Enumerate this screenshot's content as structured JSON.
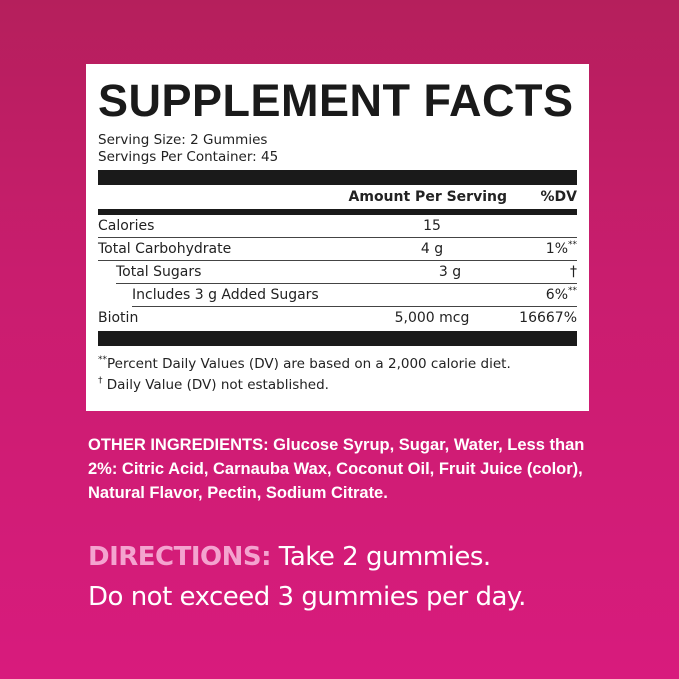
{
  "label": {
    "title": "SUPPLEMENT FACTS",
    "serving_size": "Serving Size: 2 Gummies",
    "servings_per_container": "Servings Per Container: 45",
    "header": {
      "amount": "Amount Per Serving",
      "dv": "%DV"
    },
    "rows": [
      {
        "name": "Calories",
        "amount": "15",
        "dv": "",
        "dv_mark": ""
      },
      {
        "name": "Total Carbohydrate",
        "amount": "4 g",
        "dv": "1%",
        "dv_mark": "**"
      },
      {
        "name": "Total Sugars",
        "amount": "3 g",
        "dv": "†",
        "dv_mark": ""
      },
      {
        "name": "Includes 3 g Added Sugars",
        "amount": "",
        "dv": "6%",
        "dv_mark": "**"
      },
      {
        "name": "Biotin",
        "amount": "5,000 mcg",
        "dv": "16667%",
        "dv_mark": ""
      }
    ],
    "footnote1_mark": "**",
    "footnote1": "Percent Daily Values (DV) are based on a 2,000 calorie diet.",
    "footnote2_mark": "†",
    "footnote2": " Daily Value (DV) not established."
  },
  "ingredients": {
    "label": "OTHER INGREDIENTS:",
    "text": " Glucose Syrup, Sugar, Water, Less than 2%: Citric Acid, Carnauba Wax, Coconut Oil, Fruit Juice (color), Natural Flavor, Pectin, Sodium Citrate."
  },
  "directions": {
    "label": "DIRECTIONS:",
    "line1": " Take 2 gummies.",
    "line2": "Do not exceed 3 gummies per day."
  },
  "colors": {
    "background_top": "#b51f5c",
    "background_bottom": "#d81b7d",
    "directions_label": "#f4a3cf"
  }
}
